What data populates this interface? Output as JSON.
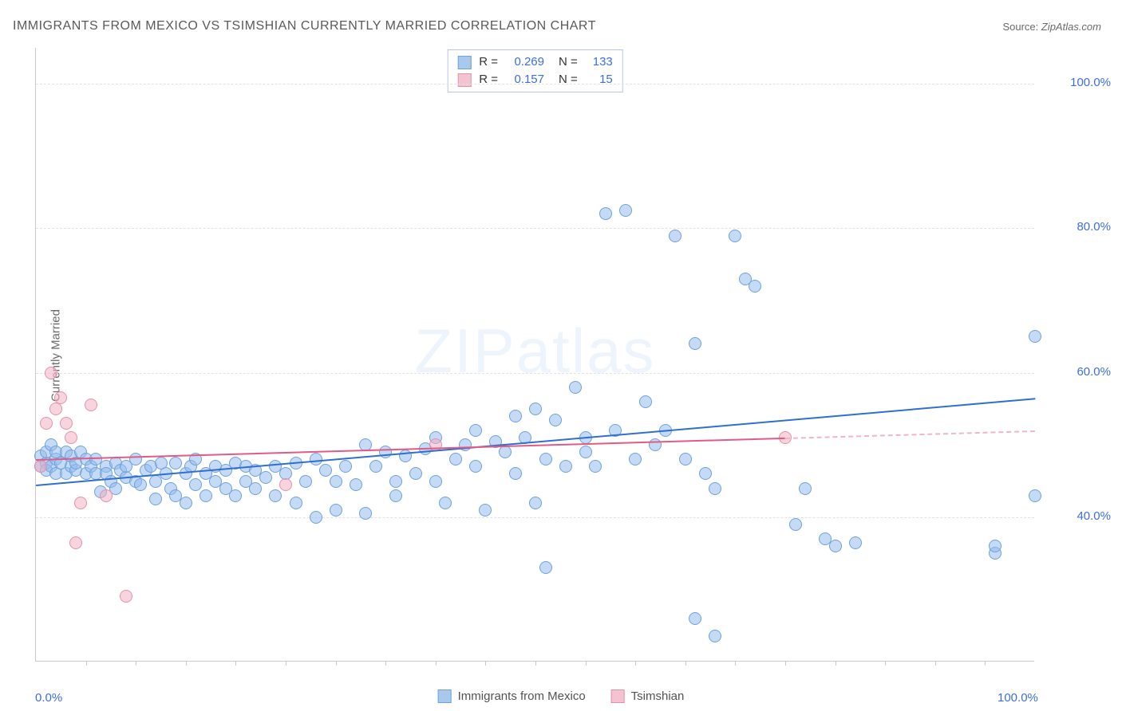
{
  "title": "IMMIGRANTS FROM MEXICO VS TSIMSHIAN CURRENTLY MARRIED CORRELATION CHART",
  "source_label": "Source: ",
  "source_value": "ZipAtlas.com",
  "watermark_a": "ZIP",
  "watermark_b": "atlas",
  "ylabel": "Currently Married",
  "chart": {
    "type": "scatter",
    "xlim": [
      0,
      100
    ],
    "ylim": [
      20,
      105
    ],
    "x_ticks_minor": [
      5,
      10,
      15,
      20,
      25,
      30,
      35,
      40,
      45,
      50,
      55,
      60,
      65,
      70,
      75,
      80,
      85,
      90,
      95
    ],
    "y_grid": [
      40,
      60,
      80,
      100
    ],
    "x_axis_labels": [
      {
        "v": 0,
        "t": "0.0%"
      },
      {
        "v": 100,
        "t": "100.0%"
      }
    ],
    "y_axis_labels": [
      {
        "v": 40,
        "t": "40.0%"
      },
      {
        "v": 60,
        "t": "60.0%"
      },
      {
        "v": 80,
        "t": "80.0%"
      },
      {
        "v": 100,
        "t": "100.0%"
      }
    ],
    "background_color": "#ffffff",
    "grid_color": "#e2e2e2",
    "axis_color": "#c9c9c9",
    "tick_label_color": "#3d6fd6",
    "marker_radius": 8,
    "series": [
      {
        "name": "Immigrants from Mexico",
        "key": "mexico",
        "fill": "rgba(147,187,237,0.55)",
        "stroke": "#6fa1dd",
        "legend_fill": "#a9c8ee",
        "legend_stroke": "#6fa1dd",
        "R": "0.269",
        "N": "133",
        "trend": {
          "x1": 0,
          "y1": 44.5,
          "x2": 100,
          "y2": 56.5,
          "color": "#2f6fd0",
          "dash": false
        },
        "points": [
          [
            0.5,
            47
          ],
          [
            0.5,
            48.5
          ],
          [
            1,
            47.5
          ],
          [
            1,
            49
          ],
          [
            1,
            46.5
          ],
          [
            1.5,
            50
          ],
          [
            1.5,
            47
          ],
          [
            2,
            48
          ],
          [
            2,
            49
          ],
          [
            2,
            46
          ],
          [
            2.5,
            47.5
          ],
          [
            3,
            49
          ],
          [
            3,
            46
          ],
          [
            3.5,
            47
          ],
          [
            3.5,
            48.5
          ],
          [
            4,
            46.5
          ],
          [
            4,
            47.5
          ],
          [
            4.5,
            49
          ],
          [
            5,
            46
          ],
          [
            5,
            48
          ],
          [
            5.5,
            47
          ],
          [
            6,
            46
          ],
          [
            6,
            48
          ],
          [
            6.5,
            43.5
          ],
          [
            7,
            47
          ],
          [
            7,
            46
          ],
          [
            7.5,
            45
          ],
          [
            8,
            47.5
          ],
          [
            8,
            44
          ],
          [
            8.5,
            46.5
          ],
          [
            9,
            45.5
          ],
          [
            9,
            47
          ],
          [
            10,
            48
          ],
          [
            10,
            45
          ],
          [
            10.5,
            44.5
          ],
          [
            11,
            46.5
          ],
          [
            11.5,
            47
          ],
          [
            12,
            45
          ],
          [
            12,
            42.5
          ],
          [
            12.5,
            47.5
          ],
          [
            13,
            46
          ],
          [
            13.5,
            44
          ],
          [
            14,
            47.5
          ],
          [
            14,
            43
          ],
          [
            15,
            46
          ],
          [
            15,
            42
          ],
          [
            15.5,
            47
          ],
          [
            16,
            48
          ],
          [
            16,
            44.5
          ],
          [
            17,
            46
          ],
          [
            17,
            43
          ],
          [
            18,
            47
          ],
          [
            18,
            45
          ],
          [
            19,
            46.5
          ],
          [
            19,
            44
          ],
          [
            20,
            47.5
          ],
          [
            20,
            43
          ],
          [
            21,
            45
          ],
          [
            21,
            47
          ],
          [
            22,
            46.5
          ],
          [
            22,
            44
          ],
          [
            23,
            45.5
          ],
          [
            24,
            47
          ],
          [
            24,
            43
          ],
          [
            25,
            46
          ],
          [
            26,
            47.5
          ],
          [
            26,
            42
          ],
          [
            27,
            45
          ],
          [
            28,
            48
          ],
          [
            28,
            40
          ],
          [
            29,
            46.5
          ],
          [
            30,
            45
          ],
          [
            30,
            41
          ],
          [
            31,
            47
          ],
          [
            32,
            44.5
          ],
          [
            33,
            50
          ],
          [
            33,
            40.5
          ],
          [
            34,
            47
          ],
          [
            35,
            49
          ],
          [
            36,
            45
          ],
          [
            36,
            43
          ],
          [
            37,
            48.5
          ],
          [
            38,
            46
          ],
          [
            39,
            49.5
          ],
          [
            40,
            45
          ],
          [
            40,
            51
          ],
          [
            41,
            42
          ],
          [
            42,
            48
          ],
          [
            43,
            50
          ],
          [
            44,
            47
          ],
          [
            44,
            52
          ],
          [
            45,
            41
          ],
          [
            46,
            50.5
          ],
          [
            47,
            49
          ],
          [
            48,
            46
          ],
          [
            48,
            54
          ],
          [
            49,
            51
          ],
          [
            50,
            55
          ],
          [
            50,
            42
          ],
          [
            51,
            48
          ],
          [
            51,
            33
          ],
          [
            52,
            53.5
          ],
          [
            53,
            47
          ],
          [
            54,
            58
          ],
          [
            55,
            49
          ],
          [
            55,
            51
          ],
          [
            56,
            47
          ],
          [
            57,
            82
          ],
          [
            58,
            52
          ],
          [
            59,
            82.5
          ],
          [
            60,
            48
          ],
          [
            61,
            56
          ],
          [
            62,
            50
          ],
          [
            63,
            52
          ],
          [
            64,
            79
          ],
          [
            65,
            48
          ],
          [
            66,
            64
          ],
          [
            66,
            26
          ],
          [
            67,
            46
          ],
          [
            68,
            44
          ],
          [
            68,
            23.5
          ],
          [
            70,
            79
          ],
          [
            71,
            73
          ],
          [
            72,
            72
          ],
          [
            76,
            39
          ],
          [
            77,
            44
          ],
          [
            79,
            37
          ],
          [
            80,
            36
          ],
          [
            82,
            36.5
          ],
          [
            96,
            35
          ],
          [
            96,
            36
          ],
          [
            100,
            65
          ],
          [
            100,
            43
          ]
        ]
      },
      {
        "name": "Tsimshian",
        "key": "tsimshian",
        "fill": "rgba(243,176,195,0.55)",
        "stroke": "#e690aa",
        "legend_fill": "#f4c3d1",
        "legend_stroke": "#e690aa",
        "R": "0.157",
        "N": "15",
        "trend": {
          "x1": 0,
          "y1": 48,
          "x2": 75,
          "y2": 51,
          "color": "#e15b85",
          "dash": false
        },
        "trend_ext": {
          "x1": 75,
          "y1": 51,
          "x2": 100,
          "y2": 52,
          "color": "#f0b5c6",
          "dash": true
        },
        "points": [
          [
            0.5,
            47
          ],
          [
            1,
            53
          ],
          [
            1.5,
            60
          ],
          [
            2,
            55
          ],
          [
            2.5,
            56.5
          ],
          [
            3,
            53
          ],
          [
            3.5,
            51
          ],
          [
            4,
            36.5
          ],
          [
            4.5,
            42
          ],
          [
            5.5,
            55.5
          ],
          [
            7,
            43
          ],
          [
            9,
            29
          ],
          [
            25,
            44.5
          ],
          [
            40,
            50
          ],
          [
            75,
            51
          ]
        ]
      }
    ]
  },
  "legend_top": {
    "r_label": "R =",
    "n_label": "N ="
  },
  "legend_bottom": {
    "items": [
      "Immigrants from Mexico",
      "Tsimshian"
    ]
  }
}
